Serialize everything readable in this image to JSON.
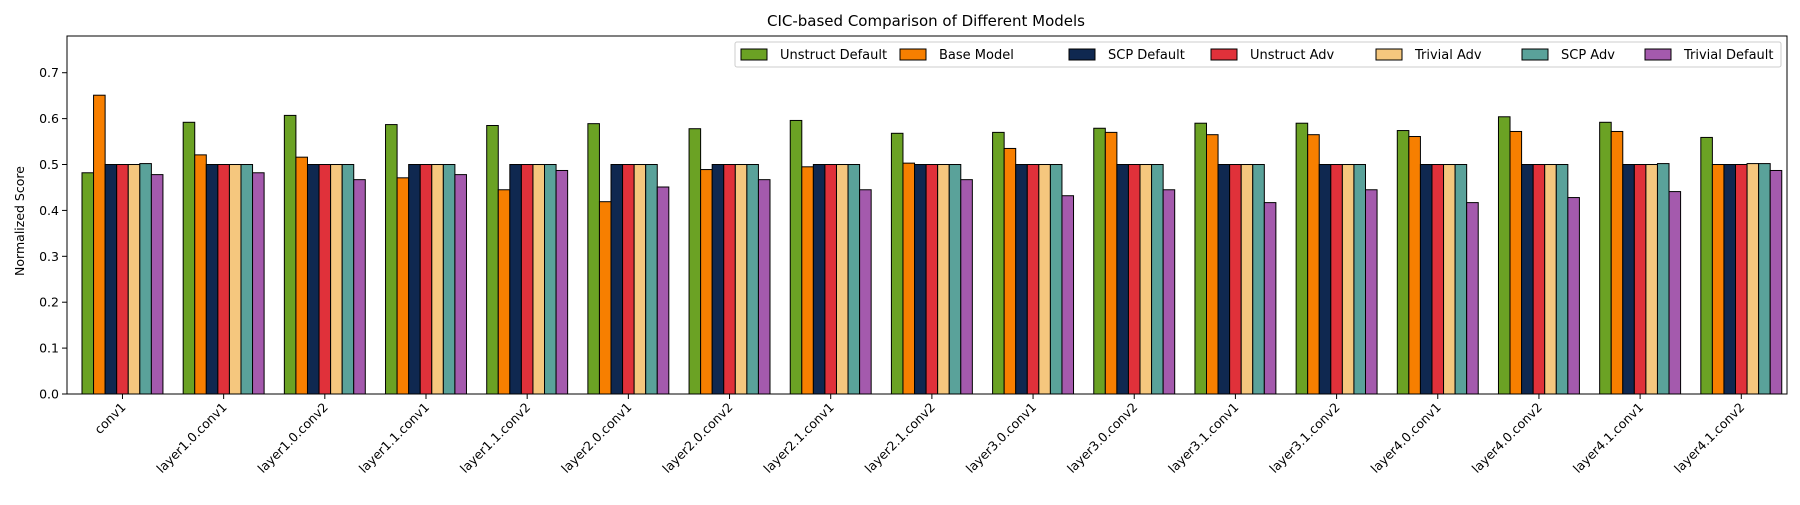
{
  "chart_data": {
    "type": "bar",
    "title": "CIC-based Comparison of Different Models",
    "xlabel": "",
    "ylabel": "Normalized Score",
    "ylim": [
      0,
      0.78
    ],
    "yticks": [
      0.0,
      0.1,
      0.2,
      0.3,
      0.4,
      0.5,
      0.6,
      0.7
    ],
    "grid": false,
    "legend_position": "top-right",
    "categories": [
      "conv1",
      "layer1.0.conv1",
      "layer1.0.conv2",
      "layer1.1.conv1",
      "layer1.1.conv2",
      "layer2.0.conv1",
      "layer2.0.conv2",
      "layer2.1.conv1",
      "layer2.1.conv2",
      "layer3.0.conv1",
      "layer3.0.conv2",
      "layer3.1.conv1",
      "layer3.1.conv2",
      "layer4.0.conv1",
      "layer4.0.conv2",
      "layer4.1.conv1",
      "layer4.1.conv2"
    ],
    "series": [
      {
        "name": "Unstruct Default",
        "color": "#6ba224",
        "values": [
          0.482,
          0.592,
          0.607,
          0.587,
          0.585,
          0.589,
          0.578,
          0.596,
          0.568,
          0.57,
          0.579,
          0.59,
          0.59,
          0.574,
          0.604,
          0.592,
          0.559
        ]
      },
      {
        "name": "Base Model",
        "color": "#f77f00",
        "values": [
          0.651,
          0.521,
          0.516,
          0.471,
          0.445,
          0.419,
          0.489,
          0.495,
          0.503,
          0.535,
          0.57,
          0.565,
          0.565,
          0.561,
          0.572,
          0.572,
          0.5
        ]
      },
      {
        "name": "SCP Default",
        "color": "#0f2850",
        "values": [
          0.5,
          0.5,
          0.5,
          0.5,
          0.5,
          0.5,
          0.5,
          0.5,
          0.5,
          0.5,
          0.5,
          0.5,
          0.5,
          0.5,
          0.5,
          0.5,
          0.5
        ]
      },
      {
        "name": "Unstruct Adv",
        "color": "#e0313a",
        "values": [
          0.5,
          0.5,
          0.5,
          0.5,
          0.5,
          0.5,
          0.5,
          0.5,
          0.5,
          0.5,
          0.5,
          0.5,
          0.5,
          0.5,
          0.5,
          0.5,
          0.5
        ]
      },
      {
        "name": "Trivial Adv",
        "color": "#f5c77e",
        "values": [
          0.5,
          0.5,
          0.5,
          0.5,
          0.5,
          0.5,
          0.5,
          0.5,
          0.5,
          0.5,
          0.5,
          0.5,
          0.5,
          0.5,
          0.5,
          0.5,
          0.502
        ]
      },
      {
        "name": "SCP Adv",
        "color": "#5aa29a",
        "values": [
          0.502,
          0.5,
          0.5,
          0.5,
          0.5,
          0.5,
          0.5,
          0.5,
          0.5,
          0.5,
          0.5,
          0.5,
          0.5,
          0.5,
          0.5,
          0.502,
          0.502
        ]
      },
      {
        "name": "Trivial Default",
        "color": "#a45aad",
        "values": [
          0.478,
          0.482,
          0.467,
          0.478,
          0.487,
          0.451,
          0.467,
          0.445,
          0.467,
          0.432,
          0.445,
          0.417,
          0.445,
          0.417,
          0.428,
          0.441,
          0.487
        ]
      }
    ]
  }
}
